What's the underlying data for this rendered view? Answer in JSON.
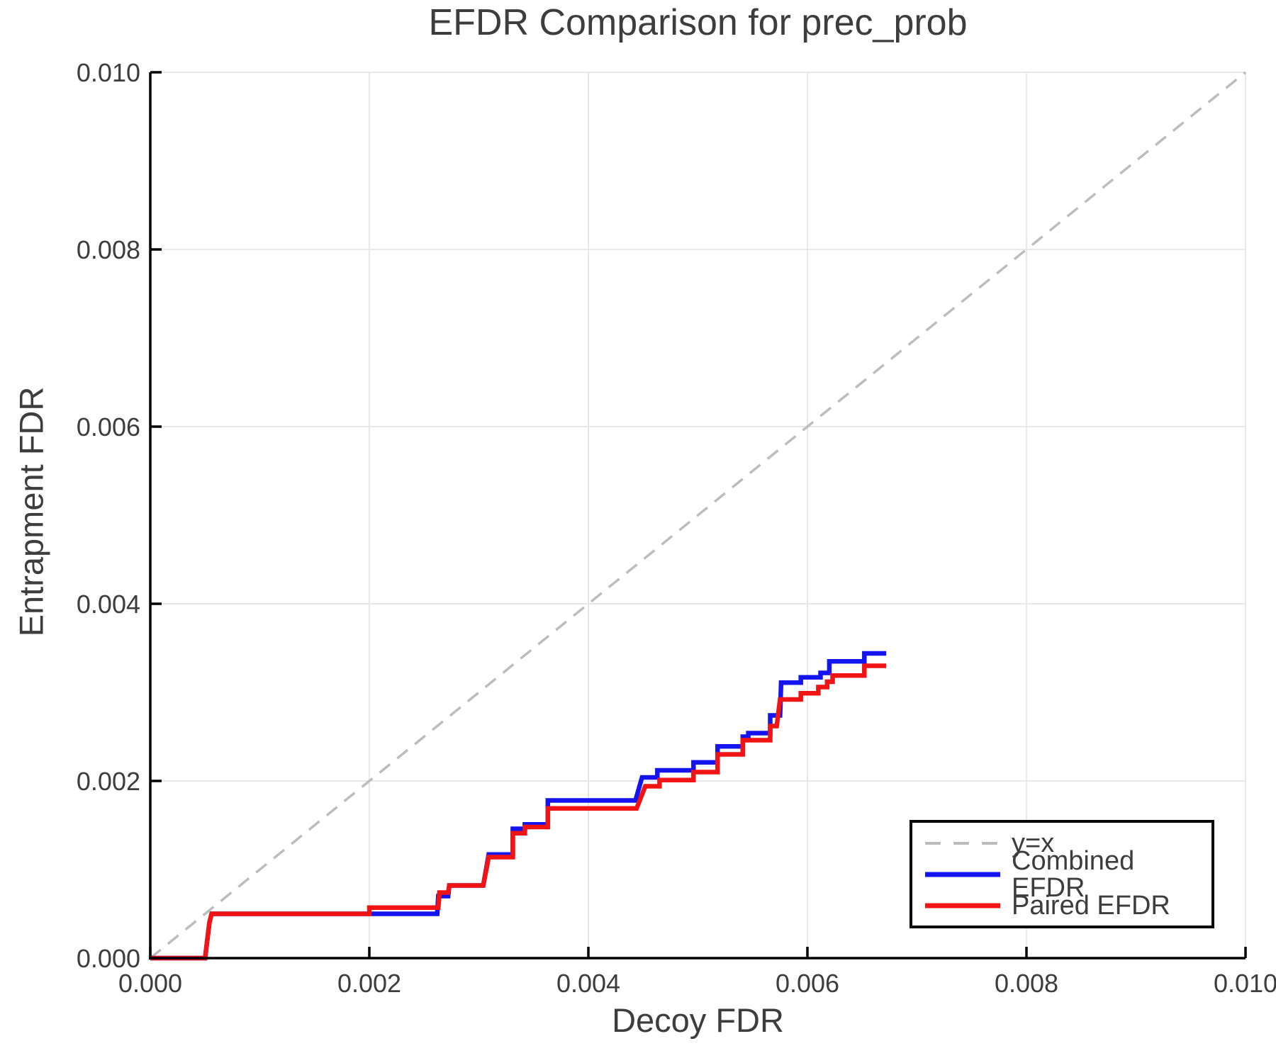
{
  "colors": {
    "grid": "#e8e8e8",
    "spine": "#000000",
    "text": "#3d3d3d",
    "background": "#ffffff"
  },
  "chart_data": {
    "type": "line",
    "title": "EFDR Comparison for prec_prob",
    "xlabel": "Decoy FDR",
    "ylabel": "Entrapment FDR",
    "xlim": [
      0,
      0.01
    ],
    "ylim": [
      0,
      0.01
    ],
    "x_ticks": [
      0,
      0.002,
      0.004,
      0.006,
      0.008,
      0.01
    ],
    "x_tick_labels": [
      "0.000",
      "0.002",
      "0.004",
      "0.006",
      "0.008",
      "0.010"
    ],
    "y_ticks": [
      0,
      0.002,
      0.004,
      0.006,
      0.008,
      0.01
    ],
    "y_tick_labels": [
      "0.000",
      "0.002",
      "0.004",
      "0.006",
      "0.008",
      "0.010"
    ],
    "grid": true,
    "legend_position": "lower right",
    "series": [
      {
        "name": "y=x",
        "style": "dashed",
        "color": "#bdbdbd",
        "points": [
          [
            0,
            0
          ],
          [
            0.01,
            0.01
          ]
        ]
      },
      {
        "name": "Combined EFDR",
        "style": "solid",
        "color": "#1414f0",
        "points": [
          [
            0,
            0
          ],
          [
            0.0005,
            0
          ],
          [
            0.00054,
            0.0004
          ],
          [
            0.00056,
            0.0005
          ],
          [
            0.00262,
            0.0005
          ],
          [
            0.00263,
            0.0007
          ],
          [
            0.00272,
            0.0007
          ],
          [
            0.00273,
            0.00082
          ],
          [
            0.00304,
            0.00082
          ],
          [
            0.00309,
            0.00117
          ],
          [
            0.00331,
            0.00117
          ],
          [
            0.00331,
            0.00146
          ],
          [
            0.00342,
            0.00146
          ],
          [
            0.00342,
            0.00151
          ],
          [
            0.00363,
            0.00151
          ],
          [
            0.00363,
            0.00178
          ],
          [
            0.00443,
            0.00178
          ],
          [
            0.00449,
            0.00204
          ],
          [
            0.00463,
            0.00204
          ],
          [
            0.00463,
            0.00212
          ],
          [
            0.00496,
            0.00212
          ],
          [
            0.00496,
            0.00221
          ],
          [
            0.00518,
            0.00221
          ],
          [
            0.00518,
            0.00239
          ],
          [
            0.00541,
            0.00239
          ],
          [
            0.00541,
            0.0025
          ],
          [
            0.00546,
            0.0025
          ],
          [
            0.00546,
            0.00254
          ],
          [
            0.00566,
            0.00254
          ],
          [
            0.00566,
            0.00274
          ],
          [
            0.00575,
            0.00274
          ],
          [
            0.00576,
            0.00311
          ],
          [
            0.00594,
            0.00311
          ],
          [
            0.00594,
            0.00317
          ],
          [
            0.00612,
            0.00317
          ],
          [
            0.00612,
            0.00322
          ],
          [
            0.0062,
            0.00322
          ],
          [
            0.0062,
            0.00335
          ],
          [
            0.00652,
            0.00335
          ],
          [
            0.00652,
            0.00344
          ],
          [
            0.00672,
            0.00344
          ]
        ]
      },
      {
        "name": "Paired EFDR",
        "style": "solid",
        "color": "#f01414",
        "points": [
          [
            0,
            0
          ],
          [
            0.0005,
            0
          ],
          [
            0.00054,
            0.0004
          ],
          [
            0.00056,
            0.0005
          ],
          [
            0.002,
            0.0005
          ],
          [
            0.002,
            0.00057
          ],
          [
            0.00263,
            0.00057
          ],
          [
            0.00264,
            0.00074
          ],
          [
            0.00272,
            0.00074
          ],
          [
            0.00273,
            0.00082
          ],
          [
            0.00304,
            0.00082
          ],
          [
            0.00309,
            0.00114
          ],
          [
            0.00331,
            0.00114
          ],
          [
            0.00331,
            0.00141
          ],
          [
            0.00342,
            0.00141
          ],
          [
            0.00342,
            0.00148
          ],
          [
            0.00363,
            0.00148
          ],
          [
            0.00363,
            0.00169
          ],
          [
            0.00444,
            0.00169
          ],
          [
            0.00452,
            0.00194
          ],
          [
            0.00465,
            0.00194
          ],
          [
            0.00465,
            0.00201
          ],
          [
            0.00496,
            0.00201
          ],
          [
            0.00496,
            0.0021
          ],
          [
            0.00518,
            0.0021
          ],
          [
            0.00518,
            0.0023
          ],
          [
            0.00541,
            0.0023
          ],
          [
            0.00541,
            0.00246
          ],
          [
            0.00566,
            0.00246
          ],
          [
            0.00566,
            0.00262
          ],
          [
            0.00572,
            0.00262
          ],
          [
            0.00575,
            0.00292
          ],
          [
            0.00594,
            0.00292
          ],
          [
            0.00594,
            0.00299
          ],
          [
            0.0061,
            0.00299
          ],
          [
            0.0061,
            0.00306
          ],
          [
            0.00618,
            0.00306
          ],
          [
            0.00618,
            0.00312
          ],
          [
            0.00623,
            0.00312
          ],
          [
            0.00623,
            0.00319
          ],
          [
            0.00652,
            0.00319
          ],
          [
            0.00652,
            0.0033
          ],
          [
            0.00672,
            0.0033
          ]
        ]
      }
    ]
  }
}
